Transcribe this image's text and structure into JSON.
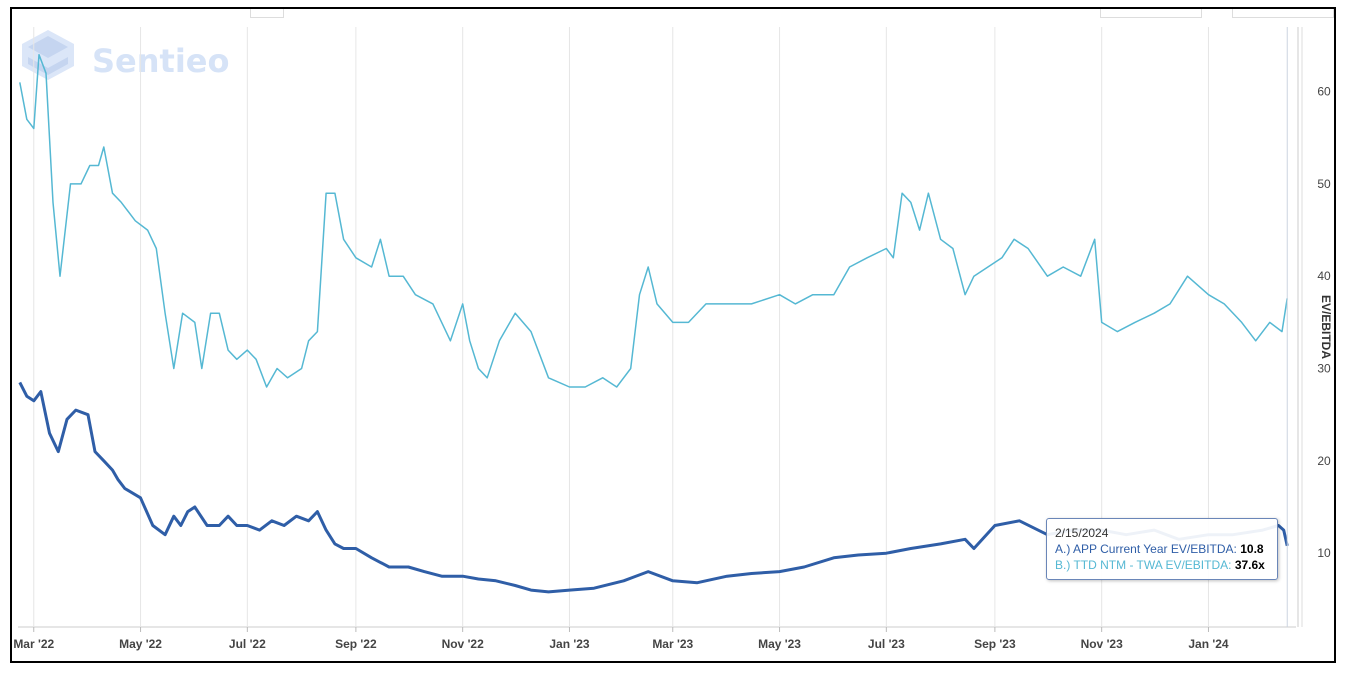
{
  "brand": {
    "name": "Sentieo"
  },
  "tooltip": {
    "date": "2/15/2024",
    "series_a_label": "A.) APP Current Year EV/EBITDA:",
    "series_a_value": "10.8",
    "series_b_label": "B.) TTD NTM - TWA EV/EBITDA:",
    "series_b_value": "37.6x"
  },
  "colors": {
    "series_a": "#2f5ea7",
    "series_b": "#55b8d3",
    "grid": "#e6e6e6"
  },
  "chart_data": {
    "type": "line",
    "ylabel": "EV/EBITDA",
    "yaxis_side": "right",
    "ylim": [
      2,
      67
    ],
    "yticks": [
      10,
      20,
      30,
      40,
      50,
      60
    ],
    "xlim": [
      "2022-02-20",
      "2024-02-20"
    ],
    "xticks": [
      {
        "date": "2022-03-01",
        "label": "Mar '22"
      },
      {
        "date": "2022-05-01",
        "label": "May '22"
      },
      {
        "date": "2022-07-01",
        "label": "Jul '22"
      },
      {
        "date": "2022-09-01",
        "label": "Sep '22"
      },
      {
        "date": "2022-11-01",
        "label": "Nov '22"
      },
      {
        "date": "2023-01-01",
        "label": "Jan '23"
      },
      {
        "date": "2023-03-01",
        "label": "Mar '23"
      },
      {
        "date": "2023-05-01",
        "label": "May '23"
      },
      {
        "date": "2023-07-01",
        "label": "Jul '23"
      },
      {
        "date": "2023-09-01",
        "label": "Sep '23"
      },
      {
        "date": "2023-11-01",
        "label": "Nov '23"
      },
      {
        "date": "2024-01-01",
        "label": "Jan '24"
      }
    ],
    "grid": {
      "x": true,
      "y": false
    },
    "series": [
      {
        "name": "A.) APP Current Year EV/EBITDA",
        "x": [
          "2022-02-21",
          "2022-02-25",
          "2022-03-01",
          "2022-03-05",
          "2022-03-10",
          "2022-03-15",
          "2022-03-20",
          "2022-03-25",
          "2022-04-01",
          "2022-04-05",
          "2022-04-10",
          "2022-04-15",
          "2022-04-18",
          "2022-04-22",
          "2022-05-01",
          "2022-05-08",
          "2022-05-15",
          "2022-05-20",
          "2022-05-24",
          "2022-05-28",
          "2022-06-01",
          "2022-06-08",
          "2022-06-15",
          "2022-06-20",
          "2022-06-25",
          "2022-07-01",
          "2022-07-08",
          "2022-07-15",
          "2022-07-22",
          "2022-07-29",
          "2022-08-05",
          "2022-08-10",
          "2022-08-15",
          "2022-08-20",
          "2022-08-25",
          "2022-09-01",
          "2022-09-10",
          "2022-09-20",
          "2022-10-01",
          "2022-10-10",
          "2022-10-20",
          "2022-11-01",
          "2022-11-10",
          "2022-11-20",
          "2022-12-01",
          "2022-12-10",
          "2022-12-20",
          "2023-01-01",
          "2023-01-15",
          "2023-02-01",
          "2023-02-15",
          "2023-03-01",
          "2023-03-15",
          "2023-04-01",
          "2023-04-15",
          "2023-05-01",
          "2023-05-15",
          "2023-06-01",
          "2023-06-15",
          "2023-07-01",
          "2023-07-15",
          "2023-08-01",
          "2023-08-15",
          "2023-08-20",
          "2023-09-01",
          "2023-09-15",
          "2023-10-01",
          "2023-10-15",
          "2023-11-01",
          "2023-11-15",
          "2023-12-01",
          "2023-12-15",
          "2024-01-01",
          "2024-01-15",
          "2024-02-01",
          "2024-02-10",
          "2024-02-13",
          "2024-02-15"
        ],
        "values": [
          28.5,
          27,
          26.5,
          27.5,
          23,
          21,
          24.5,
          25.5,
          25,
          21,
          20,
          19,
          18,
          17,
          16,
          13,
          12,
          14,
          13,
          14.5,
          15,
          13,
          13,
          14,
          13,
          13,
          12.5,
          13.5,
          13,
          14,
          13.5,
          14.5,
          12.5,
          11,
          10.5,
          10.5,
          9.5,
          8.5,
          8.5,
          8,
          7.5,
          7.5,
          7.2,
          7,
          6.5,
          6,
          5.8,
          6,
          6.2,
          7,
          8,
          7,
          6.8,
          7.5,
          7.8,
          8,
          8.5,
          9.5,
          9.8,
          10,
          10.5,
          11,
          11.5,
          10.5,
          13,
          13.5,
          12,
          12.5,
          12.5,
          12,
          12.5,
          11.5,
          12,
          12,
          12.5,
          13,
          12.5,
          10.8
        ]
      },
      {
        "name": "B.) TTD NTM - TWA EV/EBITDA",
        "x": [
          "2022-02-21",
          "2022-02-25",
          "2022-03-01",
          "2022-03-04",
          "2022-03-08",
          "2022-03-12",
          "2022-03-16",
          "2022-03-22",
          "2022-03-28",
          "2022-04-02",
          "2022-04-07",
          "2022-04-10",
          "2022-04-15",
          "2022-04-20",
          "2022-04-28",
          "2022-05-05",
          "2022-05-10",
          "2022-05-15",
          "2022-05-20",
          "2022-05-25",
          "2022-06-01",
          "2022-06-05",
          "2022-06-10",
          "2022-06-15",
          "2022-06-20",
          "2022-06-25",
          "2022-07-01",
          "2022-07-06",
          "2022-07-12",
          "2022-07-18",
          "2022-07-24",
          "2022-08-01",
          "2022-08-05",
          "2022-08-10",
          "2022-08-15",
          "2022-08-20",
          "2022-08-25",
          "2022-09-01",
          "2022-09-10",
          "2022-09-15",
          "2022-09-20",
          "2022-09-28",
          "2022-10-05",
          "2022-10-15",
          "2022-10-25",
          "2022-11-01",
          "2022-11-05",
          "2022-11-10",
          "2022-11-15",
          "2022-11-22",
          "2022-12-01",
          "2022-12-10",
          "2022-12-20",
          "2023-01-01",
          "2023-01-10",
          "2023-01-20",
          "2023-01-28",
          "2023-02-05",
          "2023-02-10",
          "2023-02-15",
          "2023-02-20",
          "2023-03-01",
          "2023-03-10",
          "2023-03-20",
          "2023-04-01",
          "2023-04-15",
          "2023-05-01",
          "2023-05-10",
          "2023-05-20",
          "2023-06-01",
          "2023-06-10",
          "2023-06-20",
          "2023-07-01",
          "2023-07-05",
          "2023-07-10",
          "2023-07-15",
          "2023-07-20",
          "2023-07-25",
          "2023-08-01",
          "2023-08-08",
          "2023-08-15",
          "2023-08-20",
          "2023-08-28",
          "2023-09-05",
          "2023-09-12",
          "2023-09-20",
          "2023-10-01",
          "2023-10-10",
          "2023-10-20",
          "2023-10-28",
          "2023-11-01",
          "2023-11-10",
          "2023-11-20",
          "2023-12-01",
          "2023-12-10",
          "2023-12-20",
          "2024-01-01",
          "2024-01-10",
          "2024-01-20",
          "2024-01-28",
          "2024-02-05",
          "2024-02-12",
          "2024-02-15"
        ],
        "values": [
          61,
          57,
          56,
          64,
          62,
          48,
          40,
          50,
          50,
          52,
          52,
          54,
          49,
          48,
          46,
          45,
          43,
          36,
          30,
          36,
          35,
          30,
          36,
          36,
          32,
          31,
          32,
          31,
          28,
          30,
          29,
          30,
          33,
          34,
          49,
          49,
          44,
          42,
          41,
          44,
          40,
          40,
          38,
          37,
          33,
          37,
          33,
          30,
          29,
          33,
          36,
          34,
          29,
          28,
          28,
          29,
          28,
          30,
          38,
          41,
          37,
          35,
          35,
          37,
          37,
          37,
          38,
          37,
          38,
          38,
          41,
          42,
          43,
          42,
          49,
          48,
          45,
          49,
          44,
          43,
          38,
          40,
          41,
          42,
          44,
          43,
          40,
          41,
          40,
          44,
          35,
          34,
          35,
          36,
          37,
          40,
          38,
          37,
          35,
          33,
          35,
          34,
          37.6
        ]
      }
    ]
  }
}
